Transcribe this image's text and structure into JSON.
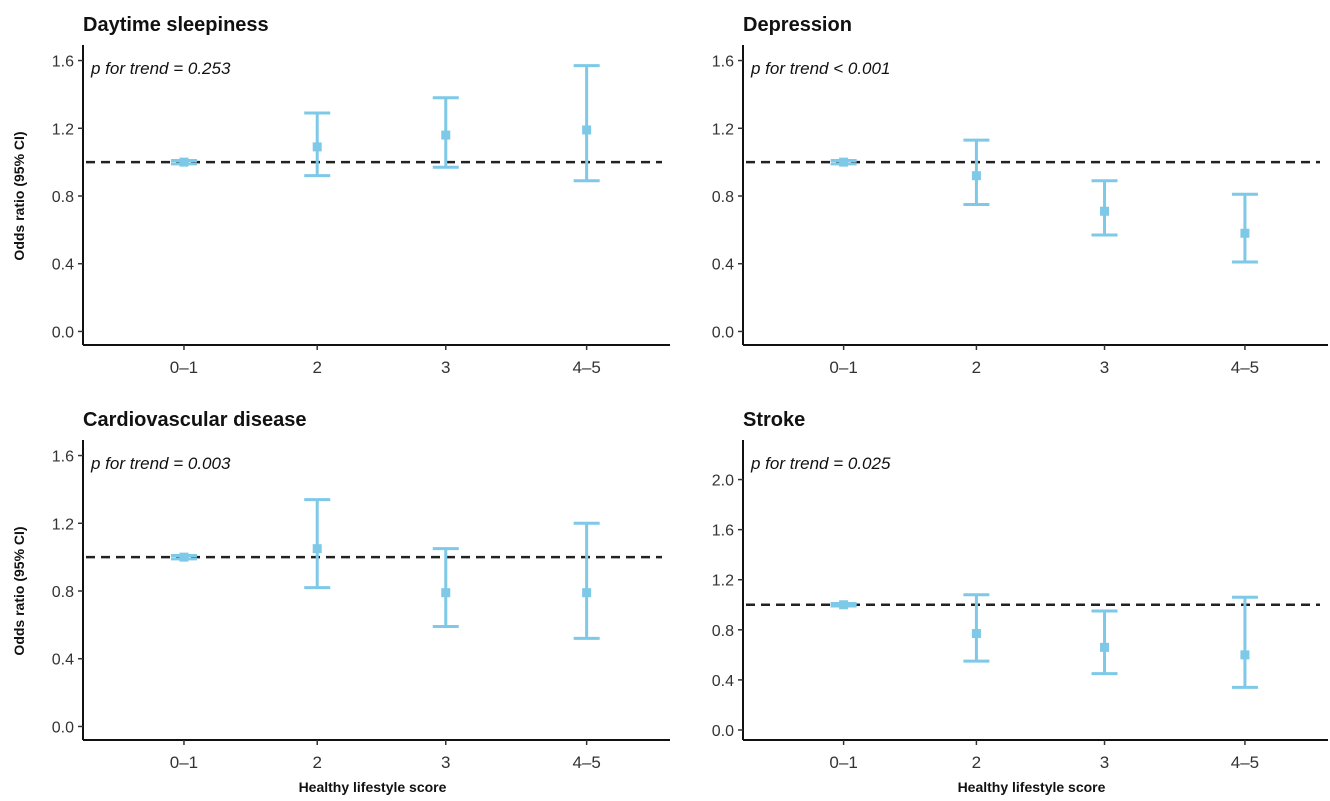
{
  "colors": {
    "point": "#7ec8e8",
    "reference_line": "#222222",
    "axis": "#111111"
  },
  "chart_data": [
    {
      "type": "scatter",
      "title": "Daytime sleepiness",
      "annotation": "p for trend = 0.253",
      "ylabel": "Odds ratio (95% CI)",
      "xlabel": "",
      "categories": [
        "0–1",
        "2",
        "3",
        "4–5"
      ],
      "estimate": [
        1.0,
        1.09,
        1.16,
        1.19
      ],
      "lower": [
        0.99,
        0.92,
        0.97,
        0.89
      ],
      "upper": [
        1.01,
        1.29,
        1.38,
        1.57
      ],
      "yticks": [
        0.0,
        0.4,
        0.8,
        1.2,
        1.6
      ],
      "ytick_labels": [
        "0.0",
        "0.4",
        "0.8",
        "1.2",
        "1.6"
      ],
      "ylim": [
        -0.08,
        1.68
      ],
      "reference_line": 1.0,
      "grid": false
    },
    {
      "type": "scatter",
      "title": "Depression",
      "annotation": "p for trend < 0.001",
      "ylabel": "",
      "xlabel": "",
      "categories": [
        "0–1",
        "2",
        "3",
        "4–5"
      ],
      "estimate": [
        1.0,
        0.92,
        0.71,
        0.58
      ],
      "lower": [
        0.99,
        0.75,
        0.57,
        0.41
      ],
      "upper": [
        1.01,
        1.13,
        0.89,
        0.81
      ],
      "yticks": [
        0.0,
        0.4,
        0.8,
        1.2,
        1.6
      ],
      "ytick_labels": [
        "0.0",
        "0.4",
        "0.8",
        "1.2",
        "1.6"
      ],
      "ylim": [
        -0.08,
        1.68
      ],
      "reference_line": 1.0,
      "grid": false
    },
    {
      "type": "scatter",
      "title": "Cardiovascular disease",
      "annotation": "p for trend = 0.003",
      "ylabel": "Odds ratio (95% CI)",
      "xlabel": "Healthy lifestyle score",
      "categories": [
        "0–1",
        "2",
        "3",
        "4–5"
      ],
      "estimate": [
        1.0,
        1.05,
        0.79,
        0.79
      ],
      "lower": [
        0.99,
        0.82,
        0.59,
        0.52
      ],
      "upper": [
        1.01,
        1.34,
        1.05,
        1.2
      ],
      "yticks": [
        0.0,
        0.4,
        0.8,
        1.2,
        1.6
      ],
      "ytick_labels": [
        "0.0",
        "0.4",
        "0.8",
        "1.2",
        "1.6"
      ],
      "ylim": [
        -0.08,
        1.68
      ],
      "reference_line": 1.0,
      "grid": false
    },
    {
      "type": "scatter",
      "title": "Stroke",
      "annotation": "p for trend = 0.025",
      "ylabel": "",
      "xlabel": "Healthy lifestyle score",
      "categories": [
        "0–1",
        "2",
        "3",
        "4–5"
      ],
      "estimate": [
        1.0,
        0.77,
        0.66,
        0.6
      ],
      "lower": [
        0.99,
        0.55,
        0.45,
        0.34
      ],
      "upper": [
        1.01,
        1.08,
        0.95,
        1.06
      ],
      "yticks": [
        0.0,
        0.4,
        0.8,
        1.2,
        1.6,
        2.0
      ],
      "ytick_labels": [
        "0.0",
        "0.4",
        "0.8",
        "1.2",
        "1.6",
        "2.0"
      ],
      "ylim": [
        -0.08,
        2.3
      ],
      "reference_line": 1.0,
      "grid": false
    }
  ]
}
